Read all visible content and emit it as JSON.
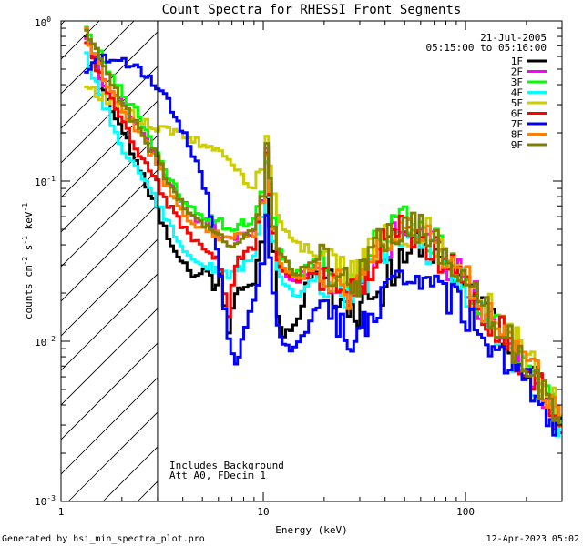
{
  "chart_data": {
    "type": "line",
    "title": "Count Spectra for RHESSI Front Segments",
    "xlabel": "Energy (keV)",
    "ylabel_parts": [
      "counts cm",
      "-2",
      " s",
      "-1",
      " keV",
      "-1"
    ],
    "xscale": "log",
    "yscale": "log",
    "xlim": [
      1,
      300
    ],
    "ylim": [
      0.001,
      1
    ],
    "x_ticks": [
      {
        "value": 1,
        "label": "1"
      },
      {
        "value": 10,
        "label": "10"
      },
      {
        "value": 100,
        "label": "100"
      }
    ],
    "y_ticks": [
      {
        "value": 0.001,
        "base": "10",
        "exp": "-3"
      },
      {
        "value": 0.01,
        "base": "10",
        "exp": "-2"
      },
      {
        "value": 0.1,
        "base": "10",
        "exp": "-1"
      },
      {
        "value": 1,
        "base": "10",
        "exp": "0"
      }
    ],
    "hatched_below_keV": 3,
    "date": "21-Jul-2005",
    "time_range": "05:15:00 to 05:16:00",
    "notes": [
      "Includes Background",
      "Att A0, FDecim 1"
    ],
    "legend_position": "top-right",
    "series": [
      {
        "name": "1F",
        "color": "#000000",
        "x": [
          1.3,
          1.6,
          2.0,
          2.4,
          2.8,
          3.2,
          3.6,
          4.0,
          4.4,
          4.8,
          5.2,
          5.6,
          6.0,
          6.6,
          7.2,
          8.0,
          8.8,
          9.6,
          10.2,
          10.6,
          11.0,
          11.6,
          12.4,
          13.4,
          14.6,
          16,
          17.5,
          19,
          21,
          23,
          25,
          27,
          29,
          31,
          33,
          35,
          38,
          41,
          45,
          49,
          54,
          59,
          64,
          70,
          77,
          85,
          95,
          105,
          115,
          125,
          140,
          155,
          170,
          190,
          210,
          230,
          250,
          280
        ],
        "y": [
          0.85,
          0.35,
          0.2,
          0.12,
          0.075,
          0.05,
          0.034,
          0.03,
          0.025,
          0.026,
          0.028,
          0.022,
          0.025,
          0.012,
          0.021,
          0.022,
          0.024,
          0.04,
          0.08,
          0.055,
          0.035,
          0.015,
          0.011,
          0.012,
          0.014,
          0.022,
          0.028,
          0.026,
          0.022,
          0.019,
          0.017,
          0.015,
          0.016,
          0.018,
          0.017,
          0.018,
          0.02,
          0.025,
          0.03,
          0.036,
          0.04,
          0.042,
          0.038,
          0.034,
          0.03,
          0.027,
          0.024,
          0.02,
          0.016,
          0.014,
          0.012,
          0.01,
          0.0085,
          0.007,
          0.006,
          0.005,
          0.0042,
          0.0031
        ]
      },
      {
        "name": "2F",
        "color": "#ff00ff",
        "x": [
          1.3,
          1.6,
          2.0,
          2.4,
          2.8,
          3.2,
          3.6,
          4.0,
          4.4,
          4.8,
          5.2,
          5.6,
          6.0,
          6.6,
          7.2,
          8.0,
          8.8,
          9.6,
          10.2,
          10.6,
          11.0,
          11.6,
          12.4,
          13.4,
          14.6,
          16,
          17.5,
          19,
          21,
          23,
          25,
          27,
          29,
          31,
          33,
          35,
          38,
          41,
          45,
          49,
          54,
          59,
          64,
          70,
          77,
          85,
          95,
          105,
          115,
          125,
          140,
          155,
          170,
          190,
          210,
          230,
          250,
          280
        ],
        "y": [
          0.8,
          0.4,
          0.3,
          0.22,
          0.15,
          0.11,
          0.085,
          0.07,
          0.06,
          0.055,
          0.055,
          0.052,
          0.045,
          0.042,
          0.046,
          0.048,
          0.05,
          0.075,
          0.15,
          0.09,
          0.05,
          0.035,
          0.028,
          0.025,
          0.024,
          0.027,
          0.03,
          0.029,
          0.025,
          0.022,
          0.02,
          0.019,
          0.021,
          0.024,
          0.028,
          0.034,
          0.038,
          0.042,
          0.046,
          0.048,
          0.047,
          0.045,
          0.04,
          0.036,
          0.032,
          0.028,
          0.024,
          0.02,
          0.017,
          0.014,
          0.012,
          0.01,
          0.0085,
          0.0072,
          0.006,
          0.005,
          0.0042,
          0.0032
        ]
      },
      {
        "name": "3F",
        "color": "#00ff00",
        "x": [
          1.3,
          1.6,
          2.0,
          2.4,
          2.8,
          3.2,
          3.6,
          4.0,
          4.4,
          4.8,
          5.2,
          5.6,
          6.0,
          6.6,
          7.2,
          8.0,
          8.8,
          9.6,
          10.2,
          10.6,
          11.0,
          11.6,
          12.4,
          13.4,
          14.6,
          16,
          17.5,
          19,
          21,
          23,
          25,
          27,
          29,
          31,
          33,
          35,
          38,
          41,
          45,
          49,
          54,
          59,
          64,
          70,
          77,
          85,
          95,
          105,
          115,
          125,
          140,
          155,
          170,
          190,
          210,
          230,
          250,
          280
        ],
        "y": [
          0.9,
          0.55,
          0.35,
          0.25,
          0.17,
          0.12,
          0.09,
          0.075,
          0.065,
          0.062,
          0.06,
          0.058,
          0.055,
          0.05,
          0.052,
          0.055,
          0.058,
          0.08,
          0.14,
          0.09,
          0.055,
          0.04,
          0.032,
          0.028,
          0.026,
          0.028,
          0.032,
          0.031,
          0.028,
          0.025,
          0.023,
          0.022,
          0.024,
          0.028,
          0.033,
          0.038,
          0.043,
          0.048,
          0.052,
          0.055,
          0.054,
          0.05,
          0.045,
          0.04,
          0.035,
          0.03,
          0.026,
          0.022,
          0.018,
          0.015,
          0.013,
          0.011,
          0.0092,
          0.0078,
          0.0065,
          0.0055,
          0.0046,
          0.0036
        ]
      },
      {
        "name": "4F",
        "color": "#00ffff",
        "x": [
          1.3,
          1.6,
          2.0,
          2.4,
          2.8,
          3.2,
          3.6,
          4.0,
          4.4,
          4.8,
          5.2,
          5.6,
          6.0,
          6.6,
          7.2,
          8.0,
          8.8,
          9.6,
          10.2,
          10.6,
          11.0,
          11.6,
          12.4,
          13.4,
          14.6,
          16,
          17.5,
          19,
          21,
          23,
          25,
          27,
          29,
          31,
          33,
          35,
          38,
          41,
          45,
          49,
          54,
          59,
          64,
          70,
          77,
          85,
          95,
          105,
          115,
          125,
          140,
          155,
          170,
          190,
          210,
          230,
          250,
          280
        ],
        "y": [
          0.6,
          0.3,
          0.16,
          0.11,
          0.08,
          0.06,
          0.045,
          0.038,
          0.032,
          0.03,
          0.03,
          0.028,
          0.027,
          0.025,
          0.028,
          0.03,
          0.032,
          0.06,
          0.13,
          0.08,
          0.045,
          0.03,
          0.024,
          0.021,
          0.02,
          0.022,
          0.025,
          0.025,
          0.022,
          0.02,
          0.019,
          0.018,
          0.02,
          0.024,
          0.028,
          0.033,
          0.037,
          0.04,
          0.044,
          0.046,
          0.045,
          0.043,
          0.039,
          0.035,
          0.031,
          0.027,
          0.023,
          0.019,
          0.016,
          0.013,
          0.011,
          0.0095,
          0.008,
          0.0068,
          0.0057,
          0.0048,
          0.004,
          0.003
        ]
      },
      {
        "name": "5F",
        "color": "#cccc00",
        "x": [
          1.3,
          1.6,
          2.0,
          2.4,
          2.8,
          3.2,
          3.6,
          4.0,
          4.4,
          4.8,
          5.2,
          5.6,
          6.0,
          6.6,
          7.2,
          8.0,
          8.8,
          9.6,
          10.2,
          10.6,
          11.0,
          11.6,
          12.4,
          13.4,
          14.6,
          16,
          17.5,
          19,
          21,
          23,
          25,
          27,
          29,
          31,
          33,
          35,
          38,
          41,
          45,
          49,
          54,
          59,
          64,
          70,
          77,
          85,
          95,
          105,
          115,
          125,
          140,
          155,
          170,
          190,
          210,
          230,
          250,
          280
        ],
        "y": [
          0.4,
          0.33,
          0.28,
          0.24,
          0.22,
          0.21,
          0.2,
          0.19,
          0.18,
          0.17,
          0.16,
          0.155,
          0.15,
          0.14,
          0.12,
          0.1,
          0.095,
          0.12,
          0.2,
          0.13,
          0.08,
          0.06,
          0.05,
          0.045,
          0.04,
          0.038,
          0.036,
          0.034,
          0.031,
          0.029,
          0.027,
          0.026,
          0.028,
          0.031,
          0.034,
          0.038,
          0.041,
          0.044,
          0.047,
          0.05,
          0.051,
          0.05,
          0.047,
          0.042,
          0.037,
          0.032,
          0.028,
          0.024,
          0.02,
          0.017,
          0.014,
          0.012,
          0.01,
          0.0085,
          0.0072,
          0.006,
          0.005,
          0.0039
        ]
      },
      {
        "name": "6F",
        "color": "#ff0000",
        "x": [
          1.3,
          1.6,
          2.0,
          2.4,
          2.8,
          3.2,
          3.6,
          4.0,
          4.4,
          4.8,
          5.2,
          5.6,
          6.0,
          6.6,
          7.2,
          8.0,
          8.8,
          9.6,
          10.2,
          10.6,
          11.0,
          11.6,
          12.4,
          13.4,
          14.6,
          16,
          17.5,
          19,
          21,
          23,
          25,
          27,
          29,
          31,
          33,
          35,
          38,
          41,
          45,
          49,
          54,
          59,
          64,
          70,
          77,
          85,
          95,
          105,
          115,
          125,
          140,
          155,
          170,
          190,
          210,
          230,
          250,
          280
        ],
        "y": [
          0.75,
          0.4,
          0.22,
          0.15,
          0.11,
          0.08,
          0.06,
          0.05,
          0.045,
          0.04,
          0.036,
          0.034,
          0.03,
          0.015,
          0.03,
          0.036,
          0.04,
          0.07,
          0.14,
          0.085,
          0.048,
          0.034,
          0.028,
          0.026,
          0.025,
          0.026,
          0.028,
          0.027,
          0.024,
          0.021,
          0.019,
          0.019,
          0.021,
          0.025,
          0.03,
          0.034,
          0.039,
          0.043,
          0.047,
          0.049,
          0.048,
          0.045,
          0.041,
          0.036,
          0.032,
          0.028,
          0.024,
          0.02,
          0.017,
          0.014,
          0.012,
          0.0102,
          0.0087,
          0.0073,
          0.0062,
          0.0052,
          0.0043,
          0.0033
        ]
      },
      {
        "name": "7F",
        "color": "#0000ff",
        "x": [
          1.3,
          1.6,
          2.0,
          2.4,
          2.8,
          3.2,
          3.6,
          4.0,
          4.4,
          4.8,
          5.2,
          5.6,
          6.0,
          6.6,
          7.2,
          8.0,
          8.8,
          9.6,
          10.2,
          10.6,
          11.0,
          11.6,
          12.4,
          13.4,
          14.6,
          16,
          17.5,
          19,
          21,
          23,
          25,
          27,
          29,
          31,
          33,
          35,
          38,
          41,
          45,
          49,
          54,
          59,
          64,
          70,
          77,
          85,
          95,
          105,
          115,
          125,
          140,
          155,
          170,
          190,
          210,
          230,
          250,
          280
        ],
        "y": [
          0.5,
          0.6,
          0.55,
          0.5,
          0.42,
          0.34,
          0.26,
          0.2,
          0.15,
          0.11,
          0.08,
          0.05,
          0.025,
          0.01,
          0.007,
          0.012,
          0.018,
          0.03,
          0.06,
          0.035,
          0.02,
          0.012,
          0.009,
          0.009,
          0.01,
          0.012,
          0.015,
          0.016,
          0.015,
          0.013,
          0.011,
          0.01,
          0.011,
          0.013,
          0.015,
          0.017,
          0.019,
          0.021,
          0.023,
          0.024,
          0.025,
          0.024,
          0.023,
          0.021,
          0.02,
          0.018,
          0.016,
          0.014,
          0.012,
          0.0105,
          0.009,
          0.008,
          0.0068,
          0.0058,
          0.005,
          0.0042,
          0.0036,
          0.0027
        ]
      },
      {
        "name": "8F",
        "color": "#ff8000",
        "x": [
          1.3,
          1.6,
          2.0,
          2.4,
          2.8,
          3.2,
          3.6,
          4.0,
          4.4,
          4.8,
          5.2,
          5.6,
          6.0,
          6.6,
          7.2,
          8.0,
          8.8,
          9.6,
          10.2,
          10.6,
          11.0,
          11.6,
          12.4,
          13.4,
          14.6,
          16,
          17.5,
          19,
          21,
          23,
          25,
          27,
          29,
          31,
          33,
          35,
          38,
          41,
          45,
          49,
          54,
          59,
          64,
          70,
          77,
          85,
          95,
          105,
          115,
          125,
          140,
          155,
          170,
          190,
          210,
          230,
          250,
          280
        ],
        "y": [
          0.85,
          0.45,
          0.28,
          0.2,
          0.14,
          0.1,
          0.075,
          0.062,
          0.055,
          0.05,
          0.048,
          0.046,
          0.045,
          0.042,
          0.044,
          0.046,
          0.048,
          0.075,
          0.15,
          0.09,
          0.05,
          0.036,
          0.029,
          0.026,
          0.025,
          0.027,
          0.03,
          0.029,
          0.026,
          0.023,
          0.021,
          0.02,
          0.022,
          0.026,
          0.031,
          0.036,
          0.041,
          0.045,
          0.049,
          0.051,
          0.05,
          0.047,
          0.043,
          0.038,
          0.033,
          0.029,
          0.025,
          0.021,
          0.018,
          0.015,
          0.013,
          0.011,
          0.0092,
          0.0078,
          0.0066,
          0.0055,
          0.0045,
          0.0035
        ]
      },
      {
        "name": "9F",
        "color": "#808000",
        "x": [
          1.3,
          1.6,
          2.0,
          2.4,
          2.8,
          3.2,
          3.6,
          4.0,
          4.4,
          4.8,
          5.2,
          5.6,
          6.0,
          6.6,
          7.2,
          8.0,
          8.8,
          9.6,
          10.2,
          10.6,
          11.0,
          11.6,
          12.4,
          13.4,
          14.6,
          16,
          17.5,
          19,
          21,
          23,
          25,
          27,
          29,
          31,
          33,
          35,
          38,
          41,
          45,
          49,
          54,
          59,
          64,
          70,
          77,
          85,
          95,
          105,
          115,
          125,
          140,
          155,
          170,
          190,
          210,
          230,
          250,
          280
        ],
        "y": [
          0.92,
          0.5,
          0.3,
          0.21,
          0.15,
          0.11,
          0.085,
          0.07,
          0.06,
          0.055,
          0.052,
          0.05,
          0.046,
          0.04,
          0.042,
          0.045,
          0.05,
          0.08,
          0.17,
          0.1,
          0.055,
          0.04,
          0.032,
          0.029,
          0.027,
          0.029,
          0.032,
          0.031,
          0.028,
          0.025,
          0.023,
          0.022,
          0.024,
          0.028,
          0.033,
          0.038,
          0.042,
          0.046,
          0.05,
          0.053,
          0.052,
          0.049,
          0.044,
          0.039,
          0.034,
          0.03,
          0.026,
          0.022,
          0.018,
          0.015,
          0.013,
          0.011,
          0.0093,
          0.0079,
          0.0067,
          0.0056,
          0.0046,
          0.0036
        ]
      }
    ]
  },
  "footer": {
    "generated_by": "Generated by hsi_min_spectra_plot.pro",
    "timestamp": "12-Apr-2023 05:02"
  }
}
